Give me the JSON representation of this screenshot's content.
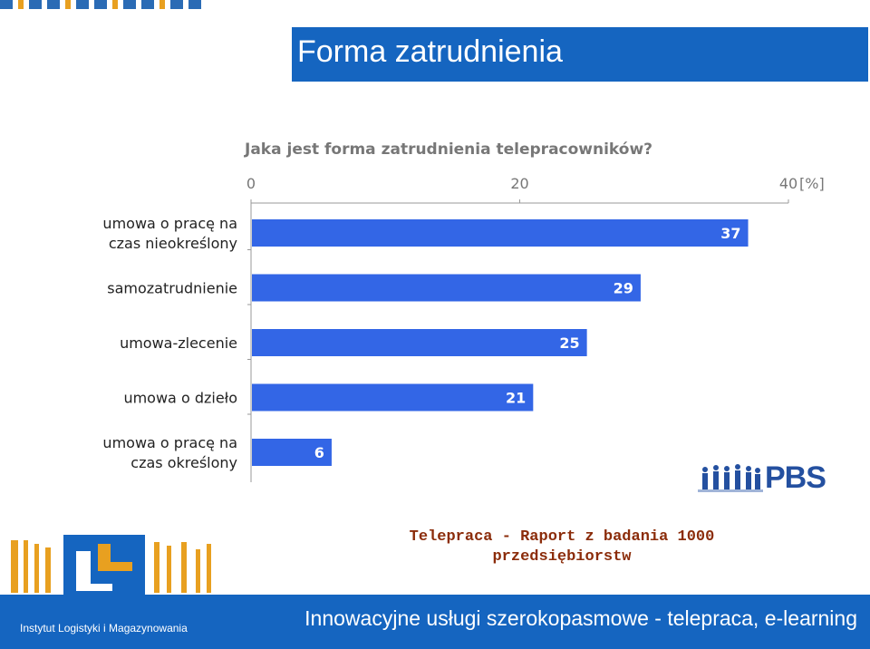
{
  "slide": {
    "title": "Forma zatrudnienia",
    "report_caption_line1": "Telepraca - Raport z badania 1000",
    "report_caption_line2": "przedsiębiorstw",
    "footer_text": "Innowacyjne usługi szerokopasmowe  - telepraca, e-learning",
    "institute_name": "Instytut Logistyki i Magazynowania",
    "pbs_logo_text": "PBS"
  },
  "colors": {
    "accent": "#1565c0",
    "bar": "#3366e6",
    "caption": "#8b2c0a",
    "orange": "#e8a020"
  },
  "chart_data": {
    "type": "bar",
    "orientation": "horizontal",
    "title": "Jaka jest forma zatrudnienia telepracowników?",
    "categories": [
      "umowa o pracę na\nczas nieokreślony",
      "samozatrudnienie",
      "umowa-zlecenie",
      "umowa o dzieło",
      "umowa o pracę na\nczas określony"
    ],
    "values": [
      37,
      29,
      25,
      21,
      6
    ],
    "xlim": [
      0,
      40
    ],
    "xticks": [
      0,
      20,
      40
    ],
    "x_unit_label": "[%]",
    "grid": false,
    "legend": "none"
  }
}
